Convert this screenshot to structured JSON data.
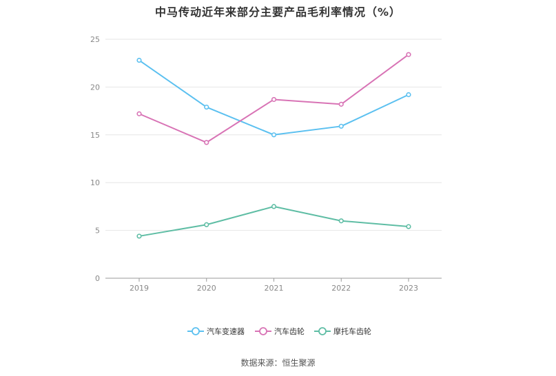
{
  "title": "中马传动近年来部分主要产品毛利率情况（%）",
  "source": "数据来源：恒生聚源",
  "chart_data": {
    "type": "line",
    "title": "中马传动近年来部分主要产品毛利率情况（%）",
    "xlabel": "",
    "ylabel": "",
    "categories": [
      "2019",
      "2020",
      "2021",
      "2022",
      "2023"
    ],
    "ylim": [
      0,
      25
    ],
    "yticks": [
      0,
      5,
      10,
      15,
      20,
      25
    ],
    "grid": true,
    "legend_position": "bottom-center",
    "series": [
      {
        "name": "汽车变速器",
        "color": "#5bc0f0",
        "values": [
          22.8,
          17.9,
          15.0,
          15.9,
          19.2
        ]
      },
      {
        "name": "汽车齿轮",
        "color": "#d873b5",
        "values": [
          17.2,
          14.2,
          18.7,
          18.2,
          23.4
        ]
      },
      {
        "name": "摩托车齿轮",
        "color": "#5ebda4",
        "values": [
          4.4,
          5.6,
          7.5,
          6.0,
          5.4
        ]
      }
    ]
  }
}
